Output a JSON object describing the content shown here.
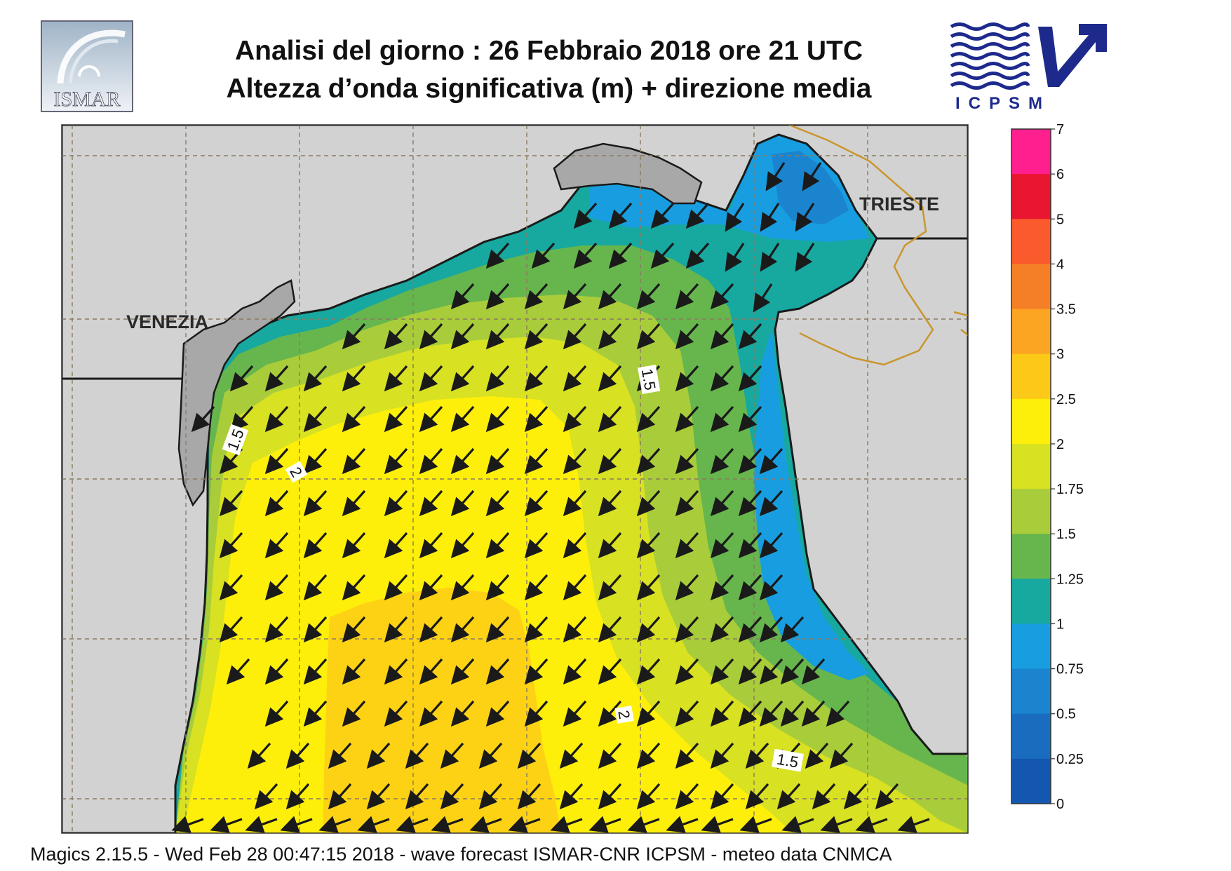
{
  "header": {
    "title_line1": "Analisi del giorno :  26  Febbraio 2018   ore 21 UTC",
    "title_line2": "Altezza d’onda significativa (m) + direzione media"
  },
  "logos": {
    "ismar": {
      "text": "ISMAR",
      "icon": "ismar-logo"
    },
    "icpsm": {
      "text": "ICPSM",
      "icon": "icpsm-logo"
    }
  },
  "map": {
    "region": "Northern Adriatic Sea",
    "labels": {
      "venezia": "VENEZIA",
      "trieste": "TRIESTE"
    },
    "contour_labels": [
      "1.5",
      "2",
      "1.5",
      "2",
      "1.5"
    ],
    "mean_wave_direction": "arrows pointing toward south-west"
  },
  "colorbar": {
    "unit": "m",
    "ticks": [
      "7",
      "6",
      "5",
      "4",
      "3.5",
      "3",
      "2.5",
      "2",
      "1.75",
      "1.5",
      "1.25",
      "1",
      "0.75",
      "0.5",
      "0.25",
      "0"
    ],
    "colors": [
      "#ff1f8f",
      "#e8172f",
      "#fb5a2c",
      "#f57f27",
      "#fca523",
      "#fdc919",
      "#feef0a",
      "#d8e122",
      "#a9cd3a",
      "#67b64d",
      "#17a8a0",
      "#189ee0",
      "#1b84cf",
      "#196cbe",
      "#1457b0"
    ]
  },
  "footer": {
    "text": "Magics 2.15.5 - Wed Feb 28 00:47:15 2018 - wave forecast  ISMAR-CNR  ICPSM - meteo data   CNMCA"
  }
}
